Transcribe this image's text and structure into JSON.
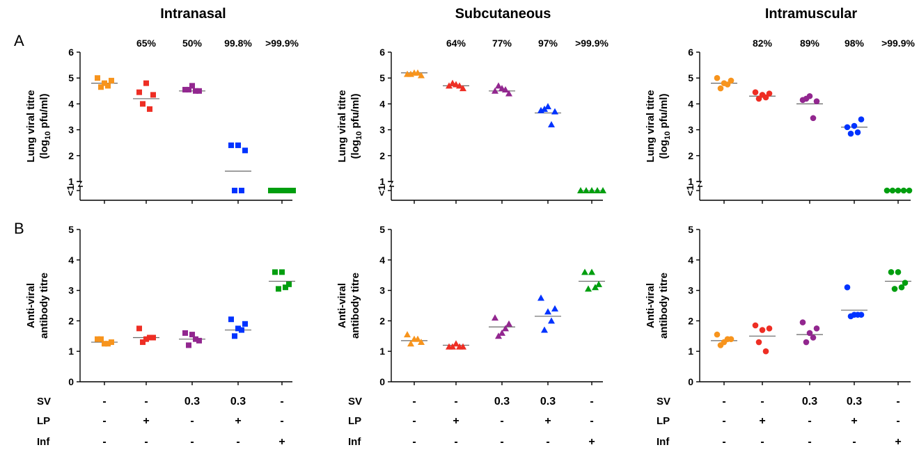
{
  "panel_letters": [
    "A",
    "B"
  ],
  "conditions": {
    "labels": [
      "SV",
      "LP",
      "Inf"
    ],
    "values": [
      [
        "-",
        "-",
        "0.3",
        "0.3",
        "-"
      ],
      [
        "-",
        "+",
        "-",
        "+",
        "-"
      ],
      [
        "-",
        "-",
        "-",
        "-",
        "+"
      ]
    ]
  },
  "group_colors": [
    "#f7941d",
    "#ee2e24",
    "#92278f",
    "#0033ff",
    "#009e0f"
  ],
  "marker_shapes": [
    "square",
    "triangle",
    "circle"
  ],
  "chart_data": [
    {
      "type": "scatter",
      "panel": "A",
      "title": "Intranasal",
      "ylabel": "Lung viral titre (log10 pfu/ml)",
      "yticks": [
        "<1",
        "1",
        "2",
        "3",
        "4",
        "5",
        "6"
      ],
      "ylim": [
        1,
        6
      ],
      "y_break": true,
      "percent_reduction": [
        "",
        "65%",
        "50%",
        "99.8%",
        ">99.9%"
      ],
      "groups": [
        {
          "points": [
            4.8,
            5.0,
            4.9,
            4.65,
            4.7
          ],
          "median": 4.8
        },
        {
          "points": [
            4.8,
            4.45,
            4.35,
            4.0,
            3.8
          ],
          "median": 4.2
        },
        {
          "points": [
            4.7,
            4.55,
            4.5,
            4.55,
            4.5
          ],
          "median": 4.5
        },
        {
          "points": [
            2.4,
            2.4,
            2.2,
            0.5,
            0.5
          ],
          "median": 1.4
        },
        {
          "points": [
            0.5,
            0.5,
            0.5,
            0.5,
            0.5
          ],
          "median": 0.5
        }
      ]
    },
    {
      "type": "scatter",
      "panel": "A",
      "title": "Subcutaneous",
      "ylabel": "Lung viral titre (log10 pfu/ml)",
      "yticks": [
        "<1",
        "1",
        "2",
        "3",
        "4",
        "5",
        "6"
      ],
      "ylim": [
        1,
        6
      ],
      "y_break": true,
      "percent_reduction": [
        "",
        "64%",
        "77%",
        "97%",
        ">99.9%"
      ],
      "groups": [
        {
          "points": [
            5.2,
            5.15,
            5.1,
            5.15,
            5.2
          ],
          "median": 5.2
        },
        {
          "points": [
            4.75,
            4.7,
            4.6,
            4.8,
            4.7
          ],
          "median": 4.7
        },
        {
          "points": [
            4.6,
            4.5,
            4.4,
            4.7,
            4.55
          ],
          "median": 4.5
        },
        {
          "points": [
            3.9,
            3.75,
            3.7,
            3.8,
            3.2
          ],
          "median": 3.65
        },
        {
          "points": [
            0.5,
            0.5,
            0.5,
            0.5,
            0.5
          ],
          "median": 0.5
        }
      ]
    },
    {
      "type": "scatter",
      "panel": "A",
      "title": "Intramuscular",
      "ylabel": "Lung viral titre (log10 pfu/ml)",
      "yticks": [
        "<1",
        "1",
        "2",
        "3",
        "4",
        "5",
        "6"
      ],
      "ylim": [
        1,
        6
      ],
      "y_break": true,
      "percent_reduction": [
        "",
        "82%",
        "89%",
        "98%",
        ">99.9%"
      ],
      "groups": [
        {
          "points": [
            4.8,
            5.0,
            4.9,
            4.6,
            4.75
          ],
          "median": 4.8
        },
        {
          "points": [
            4.35,
            4.45,
            4.4,
            4.2,
            4.25
          ],
          "median": 4.3
        },
        {
          "points": [
            4.3,
            4.15,
            4.1,
            4.2,
            3.45
          ],
          "median": 4.0
        },
        {
          "points": [
            3.15,
            3.1,
            3.4,
            2.85,
            2.9
          ],
          "median": 3.1
        },
        {
          "points": [
            0.5,
            0.5,
            0.5,
            0.5,
            0.5
          ],
          "median": 0.5
        }
      ]
    },
    {
      "type": "scatter",
      "panel": "B",
      "title": "",
      "ylabel": "Anti-viral antibody titre",
      "yticks": [
        "0",
        "1",
        "2",
        "3",
        "4",
        "5"
      ],
      "ylim": [
        0,
        5
      ],
      "groups": [
        {
          "points": [
            1.25,
            1.4,
            1.3,
            1.4,
            1.25
          ],
          "median": 1.3
        },
        {
          "points": [
            1.4,
            1.75,
            1.45,
            1.3,
            1.45
          ],
          "median": 1.45
        },
        {
          "points": [
            1.55,
            1.6,
            1.35,
            1.2,
            1.4
          ],
          "median": 1.4
        },
        {
          "points": [
            1.75,
            2.05,
            1.9,
            1.5,
            1.7
          ],
          "median": 1.7
        },
        {
          "points": [
            3.6,
            3.6,
            3.2,
            3.05,
            3.1
          ],
          "median": 3.3
        }
      ]
    },
    {
      "type": "scatter",
      "panel": "B",
      "title": "",
      "ylabel": "Anti-viral antibody titre",
      "yticks": [
        "0",
        "1",
        "2",
        "3",
        "4",
        "5"
      ],
      "ylim": [
        0,
        5
      ],
      "groups": [
        {
          "points": [
            1.4,
            1.55,
            1.3,
            1.25,
            1.4
          ],
          "median": 1.35
        },
        {
          "points": [
            1.25,
            1.15,
            1.15,
            1.15,
            1.15
          ],
          "median": 1.2
        },
        {
          "points": [
            1.6,
            2.1,
            1.9,
            1.5,
            1.75
          ],
          "median": 1.8
        },
        {
          "points": [
            2.3,
            2.75,
            2.4,
            1.7,
            2.0
          ],
          "median": 2.15
        },
        {
          "points": [
            3.6,
            3.6,
            3.2,
            3.05,
            3.1
          ],
          "median": 3.3
        }
      ]
    },
    {
      "type": "scatter",
      "panel": "B",
      "title": "",
      "ylabel": "Anti-viral antibody titre",
      "yticks": [
        "0",
        "1",
        "2",
        "3",
        "4",
        "5"
      ],
      "ylim": [
        0,
        5
      ],
      "groups": [
        {
          "points": [
            1.3,
            1.55,
            1.4,
            1.2,
            1.4
          ],
          "median": 1.35
        },
        {
          "points": [
            1.7,
            1.85,
            1.75,
            1.3,
            1.0
          ],
          "median": 1.5
        },
        {
          "points": [
            1.6,
            1.95,
            1.75,
            1.3,
            1.45
          ],
          "median": 1.55
        },
        {
          "points": [
            2.2,
            3.1,
            2.2,
            2.15,
            2.2
          ],
          "median": 2.35
        },
        {
          "points": [
            3.6,
            3.6,
            3.25,
            3.05,
            3.1
          ],
          "median": 3.3
        }
      ]
    }
  ]
}
